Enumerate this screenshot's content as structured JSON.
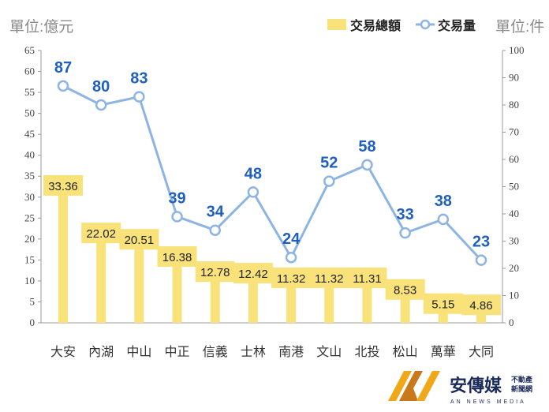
{
  "chart_data": {
    "type": "bar+line",
    "categories": [
      "大安",
      "內湖",
      "中山",
      "中正",
      "信義",
      "士林",
      "南港",
      "文山",
      "北投",
      "松山",
      "萬華",
      "大同"
    ],
    "series": [
      {
        "name": "交易總額",
        "type": "bar",
        "axis": "left",
        "color": "#f9e27a",
        "values": [
          33.36,
          22.02,
          20.51,
          16.38,
          12.78,
          12.42,
          11.32,
          11.32,
          11.31,
          8.53,
          5.15,
          4.86
        ]
      },
      {
        "name": "交易量",
        "type": "line",
        "axis": "right",
        "color": "#8db4e2",
        "values": [
          87,
          80,
          83,
          39,
          34,
          48,
          24,
          52,
          58,
          33,
          38,
          23
        ]
      }
    ],
    "left_axis": {
      "unit_label": "單位:億元",
      "ylim": [
        0,
        65
      ],
      "ticks": [
        0,
        5,
        10,
        15,
        20,
        25,
        30,
        35,
        40,
        45,
        50,
        55,
        60,
        65
      ]
    },
    "right_axis": {
      "unit_label": "單位:件",
      "ylim": [
        0,
        100
      ],
      "ticks": [
        0,
        10,
        20,
        30,
        40,
        50,
        60,
        70,
        80,
        90,
        100
      ]
    },
    "legend_position": "top-right",
    "grid": false,
    "label_color": "#1f5fbf"
  },
  "logo": {
    "text": "安傳媒",
    "sub1": "不動產",
    "sub2": "新聞網",
    "tagline": "AN NEWS MEDIA"
  }
}
